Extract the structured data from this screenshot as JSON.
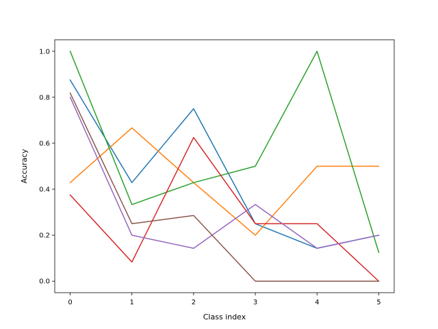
{
  "chart_data": {
    "type": "line",
    "title": "",
    "xlabel": "Class index",
    "ylabel": "Accuracy",
    "x": [
      0,
      1,
      2,
      3,
      4,
      5
    ],
    "xlim": [
      -0.25,
      5.25
    ],
    "ylim": [
      -0.05,
      1.05
    ],
    "xticks": [
      0,
      1,
      2,
      3,
      4,
      5
    ],
    "xtick_labels": [
      "0",
      "1",
      "2",
      "3",
      "4",
      "5"
    ],
    "yticks": [
      0.0,
      0.2,
      0.4,
      0.6,
      0.8,
      1.0
    ],
    "ytick_labels": [
      "0.0",
      "0.2",
      "0.4",
      "0.6",
      "0.8",
      "1.0"
    ],
    "grid": false,
    "legend": "none",
    "series": [
      {
        "color": "#1f77b4",
        "values": [
          0.875,
          0.4286,
          0.75,
          0.25,
          0.1429,
          0.2
        ]
      },
      {
        "color": "#ff7f0e",
        "values": [
          0.4286,
          0.6667,
          0.4286,
          0.2,
          0.5,
          0.5
        ]
      },
      {
        "color": "#2ca02c",
        "values": [
          1.0,
          0.3333,
          0.4286,
          0.5,
          1.0,
          0.125
        ]
      },
      {
        "color": "#d62728",
        "values": [
          0.375,
          0.0833,
          0.625,
          0.25,
          0.25,
          0.0
        ]
      },
      {
        "color": "#9467bd",
        "values": [
          0.8,
          0.2,
          0.1429,
          0.3333,
          0.1429,
          0.2
        ]
      },
      {
        "color": "#8c564b",
        "values": [
          0.8182,
          0.25,
          0.2857,
          0.0,
          0.0,
          0.0
        ]
      }
    ]
  }
}
